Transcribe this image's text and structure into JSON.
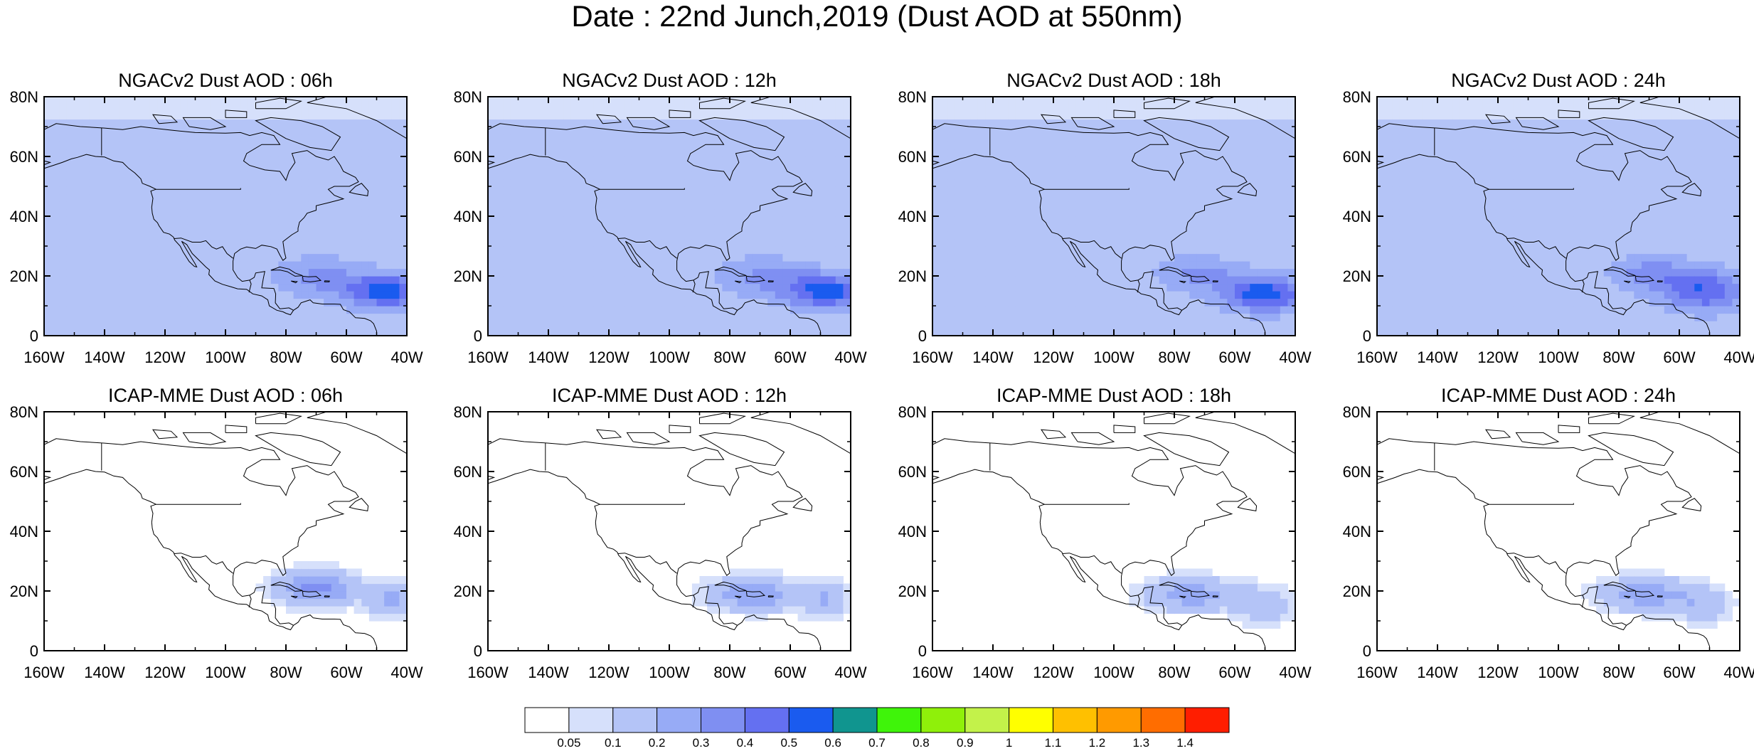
{
  "figure": {
    "title": "Date : 22nd Junch,2019 (Dust AOD at 550nm)"
  },
  "axes": {
    "x_ticks": [
      "160W",
      "140W",
      "120W",
      "100W",
      "80W",
      "60W",
      "40W"
    ],
    "x_tick_values": [
      -160,
      -140,
      -120,
      -100,
      -80,
      -60,
      -40
    ],
    "y_ticks": [
      "0",
      "20N",
      "40N",
      "60N",
      "80N"
    ],
    "y_tick_values": [
      0,
      20,
      40,
      60,
      80
    ],
    "lon_range": [
      -160,
      -40
    ],
    "lat_range": [
      0,
      80
    ]
  },
  "panels": [
    {
      "title": "NGACv2 Dust AOD : 06h",
      "model": "NGACv2",
      "lead": "06h"
    },
    {
      "title": "NGACv2 Dust AOD : 12h",
      "model": "NGACv2",
      "lead": "12h"
    },
    {
      "title": "NGACv2 Dust AOD : 18h",
      "model": "NGACv2",
      "lead": "18h"
    },
    {
      "title": "NGACv2 Dust AOD : 24h",
      "model": "NGACv2",
      "lead": "24h"
    },
    {
      "title": "ICAP-MME Dust AOD : 06h",
      "model": "ICAP-MME",
      "lead": "06h"
    },
    {
      "title": "ICAP-MME Dust AOD : 12h",
      "model": "ICAP-MME",
      "lead": "12h"
    },
    {
      "title": "ICAP-MME Dust AOD : 18h",
      "model": "ICAP-MME",
      "lead": "18h"
    },
    {
      "title": "ICAP-MME Dust AOD : 24h",
      "model": "ICAP-MME",
      "lead": "24h"
    }
  ],
  "colorbar": {
    "labels": [
      "0.05",
      "0.1",
      "0.2",
      "0.3",
      "0.4",
      "0.5",
      "0.6",
      "0.7",
      "0.8",
      "0.9",
      "1",
      "1.1",
      "1.2",
      "1.3",
      "1.4"
    ],
    "colors": [
      "#ffffff",
      "#d6e0fb",
      "#b4c4f7",
      "#97abf6",
      "#7f8ff2",
      "#6470f1",
      "#1a5bef",
      "#10958f",
      "#3ff40a",
      "#8ff00a",
      "#c3f24a",
      "#ffff00",
      "#ffc000",
      "#ff9a00",
      "#ff6d00",
      "#ff1e00"
    ]
  },
  "chart_data": [
    {
      "type": "heatmap",
      "title": "NGACv2 Dust AOD : 06h",
      "units": "AOD at 550nm",
      "field": {
        "background": 0.1,
        "saharan_plume_peak_lon_lat": [
          -45,
          15
        ],
        "plume_peak_value": 0.5
      }
    },
    {
      "type": "heatmap",
      "title": "NGACv2 Dust AOD : 12h",
      "units": "AOD at 550nm",
      "field": {
        "background": 0.1,
        "saharan_plume_peak_lon_lat": [
          -48,
          15
        ],
        "plume_peak_value": 0.5
      }
    },
    {
      "type": "heatmap",
      "title": "NGACv2 Dust AOD : 18h",
      "units": "AOD at 550nm",
      "field": {
        "background": 0.1,
        "saharan_plume_peak_lon_lat": [
          -50,
          14
        ],
        "plume_peak_value": 0.5
      }
    },
    {
      "type": "heatmap",
      "title": "NGACv2 Dust AOD : 24h",
      "units": "AOD at 550nm",
      "field": {
        "background": 0.1,
        "saharan_plume_peak_lon_lat": [
          -52,
          15
        ],
        "plume_peak_value": 0.4
      }
    },
    {
      "type": "heatmap",
      "title": "ICAP-MME Dust AOD : 06h",
      "units": "AOD at 550nm",
      "field": {
        "background": 0.05,
        "saharan_plume_peak_lon_lat": [
          -70,
          22
        ],
        "plume_peak_value": 0.4
      }
    },
    {
      "type": "heatmap",
      "title": "ICAP-MME Dust AOD : 12h",
      "units": "AOD at 550nm",
      "field": {
        "background": 0.05,
        "saharan_plume_peak_lon_lat": [
          -72,
          20
        ],
        "plume_peak_value": 0.3
      }
    },
    {
      "type": "heatmap",
      "title": "ICAP-MME Dust AOD : 18h",
      "units": "AOD at 550nm",
      "field": {
        "background": 0.05,
        "saharan_plume_peak_lon_lat": [
          -75,
          19
        ],
        "plume_peak_value": 0.3
      }
    },
    {
      "type": "heatmap",
      "title": "ICAP-MME Dust AOD : 24h",
      "units": "AOD at 550nm",
      "field": {
        "background": 0.05,
        "saharan_plume_peak_lon_lat": [
          -72,
          19
        ],
        "plume_peak_value": 0.3
      }
    }
  ]
}
